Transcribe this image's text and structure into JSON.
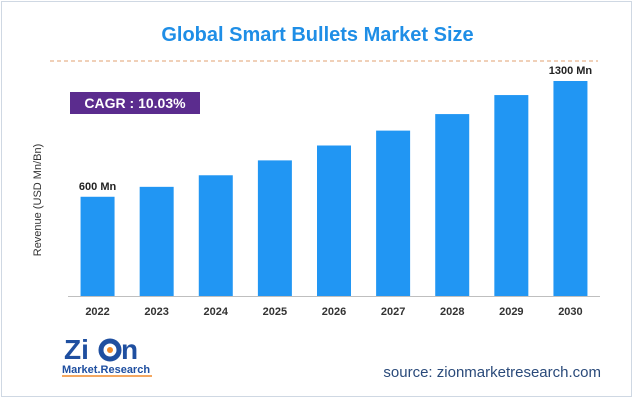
{
  "title": "Global Smart Bullets Market Size",
  "cagr_label": "CAGR : 10.03%",
  "source_text": "source: zionmarketresearch.com",
  "logo": {
    "name": "Zion",
    "sub": "Market.Research"
  },
  "colors": {
    "bar": "#2196f3",
    "title": "#1f8ee6",
    "cagr_bg": "#5b2c8e",
    "dashed_line": "#e0a070",
    "source": "#2a4a7a"
  },
  "chart_data": {
    "type": "bar",
    "title": "Global Smart Bullets Market Size",
    "ylabel": "Revenue (USD Mn/Bn)",
    "xlabel": "",
    "categories": [
      "2022",
      "2023",
      "2024",
      "2025",
      "2026",
      "2027",
      "2028",
      "2029",
      "2030"
    ],
    "values": [
      600,
      660,
      730,
      820,
      910,
      1000,
      1100,
      1215,
      1300
    ],
    "ylim": [
      0,
      1300
    ],
    "grid": false,
    "annotations": [
      {
        "category": "2022",
        "text": "600 Mn"
      },
      {
        "category": "2030",
        "text": "1300 Mn"
      }
    ]
  }
}
